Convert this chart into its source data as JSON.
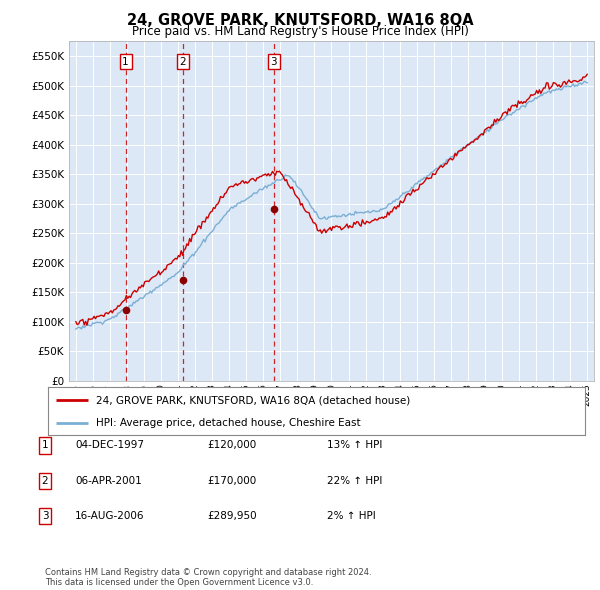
{
  "title": "24, GROVE PARK, KNUTSFORD, WA16 8QA",
  "subtitle": "Price paid vs. HM Land Registry's House Price Index (HPI)",
  "ylim": [
    0,
    575000
  ],
  "yticks": [
    0,
    50000,
    100000,
    150000,
    200000,
    250000,
    300000,
    350000,
    400000,
    450000,
    500000,
    550000
  ],
  "ytick_labels": [
    "£0",
    "£50K",
    "£100K",
    "£150K",
    "£200K",
    "£250K",
    "£300K",
    "£350K",
    "£400K",
    "£450K",
    "£500K",
    "£550K"
  ],
  "sales": [
    {
      "year": 1997.92,
      "price": 120000,
      "label": "1"
    },
    {
      "year": 2001.27,
      "price": 170000,
      "label": "2"
    },
    {
      "year": 2006.62,
      "price": 289950,
      "label": "3"
    }
  ],
  "legend_line1": "24, GROVE PARK, KNUTSFORD, WA16 8QA (detached house)",
  "legend_line2": "HPI: Average price, detached house, Cheshire East",
  "table": [
    {
      "num": "1",
      "date": "04-DEC-1997",
      "price": "£120,000",
      "hpi": "13% ↑ HPI"
    },
    {
      "num": "2",
      "date": "06-APR-2001",
      "price": "£170,000",
      "hpi": "22% ↑ HPI"
    },
    {
      "num": "3",
      "date": "16-AUG-2006",
      "price": "£289,950",
      "hpi": "2% ↑ HPI"
    }
  ],
  "footer": "Contains HM Land Registry data © Crown copyright and database right 2024.\nThis data is licensed under the Open Government Licence v3.0.",
  "plot_bg_color": "#dce8f5",
  "hpi_color": "#7bafd4",
  "price_color": "#cc0000",
  "vline_color": "#cc0000",
  "marker_color": "#8b0000",
  "xlim_left": 1994.6,
  "xlim_right": 2025.4
}
